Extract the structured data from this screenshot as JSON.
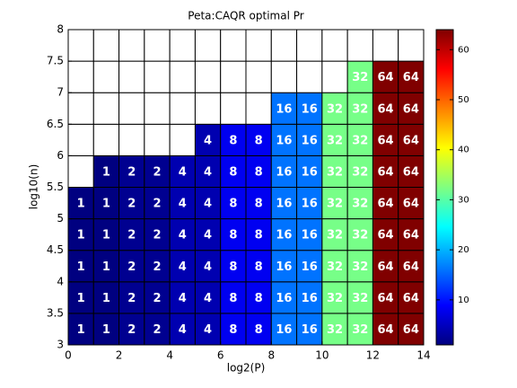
{
  "chart_data": {
    "type": "heatmap",
    "title": "Peta:CAQR optimal Pr",
    "xlabel": "log2(P)",
    "ylabel": "log10(n)",
    "x_edges": [
      0,
      1,
      2,
      3,
      4,
      5,
      6,
      7,
      8,
      9,
      10,
      11,
      12,
      13,
      14
    ],
    "y_edges": [
      3,
      3.5,
      4,
      4.5,
      5,
      5.5,
      6,
      6.5,
      7,
      7.5,
      8
    ],
    "z": [
      [
        1,
        1,
        2,
        2,
        4,
        4,
        8,
        8,
        16,
        16,
        32,
        32,
        64,
        64
      ],
      [
        1,
        1,
        2,
        2,
        4,
        4,
        8,
        8,
        16,
        16,
        32,
        32,
        64,
        64
      ],
      [
        1,
        1,
        2,
        2,
        4,
        4,
        8,
        8,
        16,
        16,
        32,
        32,
        64,
        64
      ],
      [
        1,
        1,
        2,
        2,
        4,
        4,
        8,
        8,
        16,
        16,
        32,
        32,
        64,
        64
      ],
      [
        1,
        1,
        2,
        2,
        4,
        4,
        8,
        8,
        16,
        16,
        32,
        32,
        64,
        64
      ],
      [
        null,
        1,
        2,
        2,
        4,
        4,
        8,
        8,
        16,
        16,
        32,
        32,
        64,
        64
      ],
      [
        null,
        null,
        null,
        null,
        null,
        4,
        8,
        8,
        16,
        16,
        32,
        32,
        64,
        64
      ],
      [
        null,
        null,
        null,
        null,
        null,
        null,
        null,
        null,
        16,
        16,
        32,
        32,
        64,
        64
      ],
      [
        null,
        null,
        null,
        null,
        null,
        null,
        null,
        null,
        null,
        null,
        null,
        32,
        64,
        64
      ],
      [
        null,
        null,
        null,
        null,
        null,
        null,
        null,
        null,
        null,
        null,
        null,
        null,
        null,
        null
      ]
    ],
    "xlim": [
      0,
      14
    ],
    "xticks": [
      0,
      2,
      4,
      6,
      8,
      10,
      12,
      14
    ],
    "ylim": [
      3,
      8
    ],
    "yticks": [
      3,
      3.5,
      4,
      4.5,
      5,
      5.5,
      6,
      6.5,
      7,
      7.5,
      8
    ],
    "colormap": "jet",
    "clim": [
      1,
      64
    ],
    "cticks": [
      10,
      20,
      30,
      40,
      50,
      60
    ]
  }
}
